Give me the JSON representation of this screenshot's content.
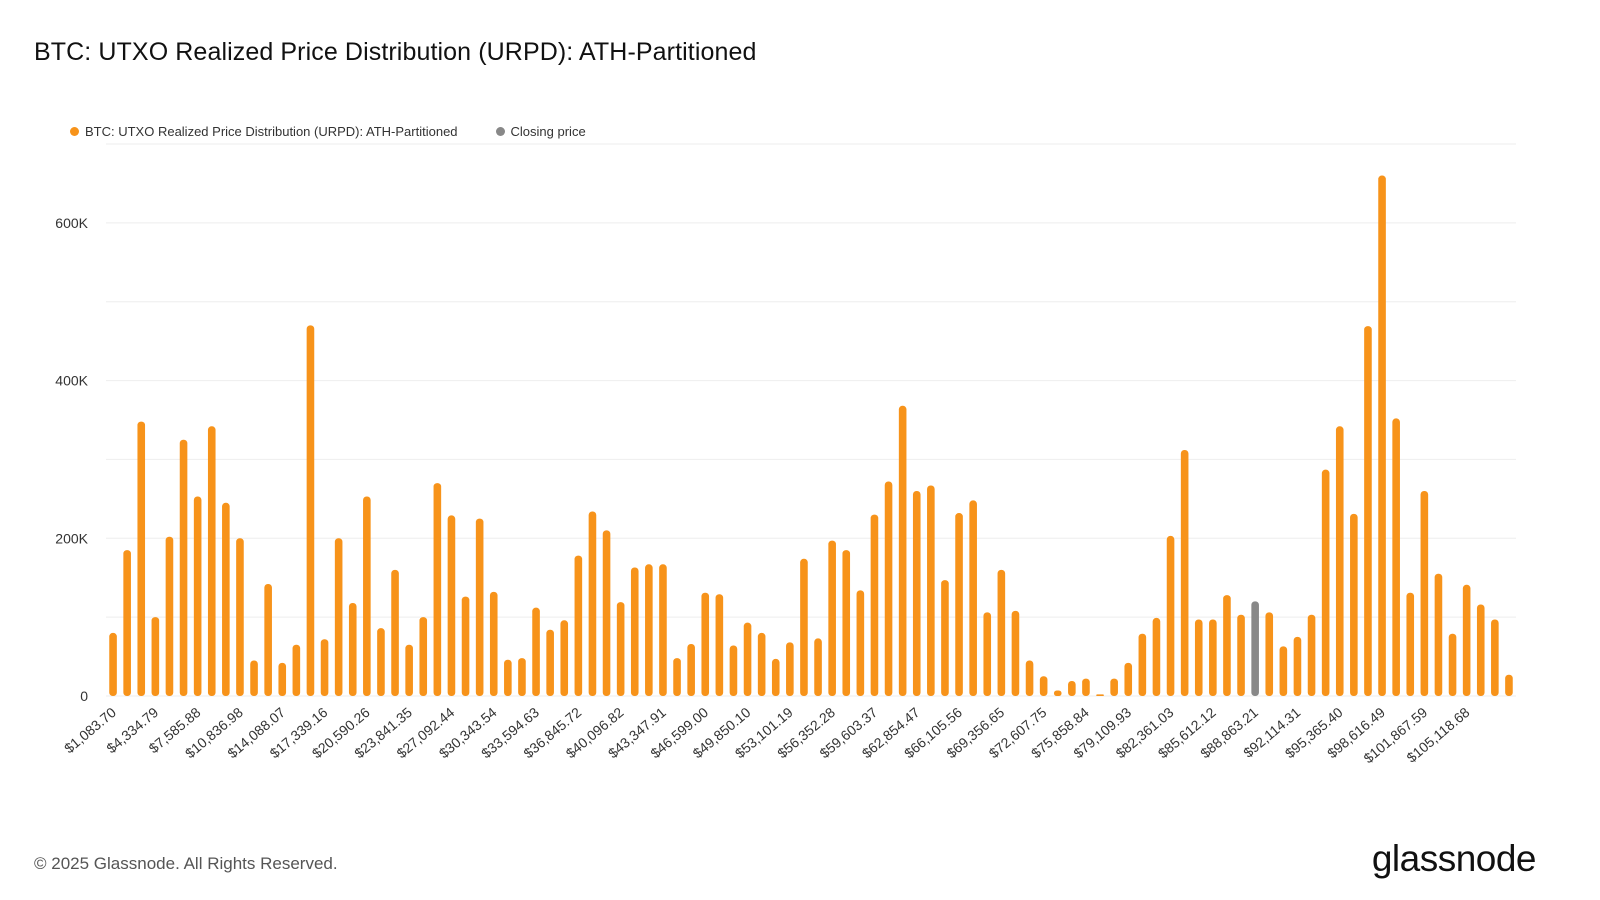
{
  "title": "BTC: UTXO Realized Price Distribution (URPD): ATH-Partitioned",
  "legend": [
    {
      "label": "BTC: UTXO Realized Price Distribution (URPD): ATH-Partitioned",
      "color": "#f7931a"
    },
    {
      "label": "Closing price",
      "color": "#888888"
    }
  ],
  "footer": "© 2025 Glassnode. All Rights Reserved.",
  "brand": "glassnode",
  "colors": {
    "bar": "#f7931a",
    "closing": "#888888",
    "grid": "#eeeeee"
  },
  "chart_data": {
    "type": "bar",
    "ylim": [
      0,
      700000
    ],
    "y_ticks": [
      0,
      200000,
      400000,
      600000
    ],
    "y_tick_labels": [
      "0",
      "200K",
      "400K",
      "600K"
    ],
    "x_tick_labels": [
      "$1,083.70",
      "$4,334.79",
      "$7,585.88",
      "$10,836.98",
      "$14,088.07",
      "$17,339.16",
      "$20,590.26",
      "$23,841.35",
      "$27,092.44",
      "$30,343.54",
      "$33,594.63",
      "$36,845.72",
      "$40,096.82",
      "$43,347.91",
      "$46,599.00",
      "$49,850.10",
      "$53,101.19",
      "$56,352.28",
      "$59,603.37",
      "$62,854.47",
      "$66,105.56",
      "$69,356.65",
      "$72,607.75",
      "$75,858.84",
      "$79,109.93",
      "$82,361.03",
      "$85,612.12",
      "$88,863.21",
      "$92,114.31",
      "$95,365.40",
      "$98,616.49",
      "$101,867.59",
      "$105,118.68"
    ],
    "x_tick_every": 3,
    "closing_price_index": 81,
    "values": [
      80000,
      185000,
      348000,
      100000,
      202000,
      325000,
      253000,
      342000,
      245000,
      200000,
      45000,
      142000,
      42000,
      65000,
      470000,
      72000,
      200000,
      118000,
      253000,
      86000,
      160000,
      65000,
      100000,
      270000,
      229000,
      126000,
      225000,
      132000,
      46000,
      48000,
      112000,
      84000,
      96000,
      178000,
      234000,
      210000,
      119000,
      163000,
      167000,
      167000,
      48000,
      66000,
      131000,
      129000,
      64000,
      93000,
      80000,
      47000,
      68000,
      174000,
      73000,
      197000,
      185000,
      134000,
      230000,
      272000,
      368000,
      260000,
      267000,
      147000,
      232000,
      248000,
      106000,
      160000,
      108000,
      45000,
      25000,
      7000,
      19000,
      22000,
      2000,
      22000,
      42000,
      79000,
      99000,
      203000,
      312000,
      97000,
      97000,
      128000,
      103000,
      120000,
      106000,
      63000,
      75000,
      103000,
      287000,
      342000,
      231000,
      469000,
      660000,
      352000,
      131000,
      260000,
      155000,
      79000,
      141000,
      116000,
      97000,
      27000
    ]
  }
}
